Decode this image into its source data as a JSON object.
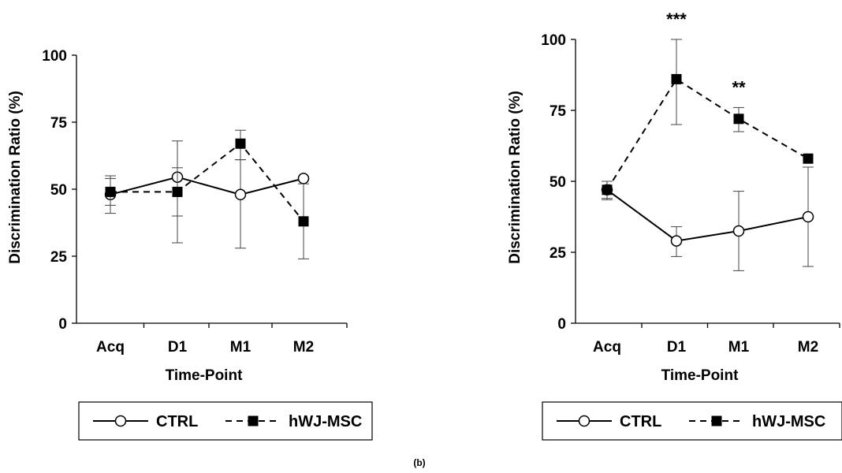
{
  "figure_label": "(b)",
  "chart_data": [
    {
      "type": "line",
      "xlabel": "Time-Point",
      "ylabel": "Discrimination Ratio (%)",
      "categories": [
        "Acq",
        "D1",
        "M1",
        "M2"
      ],
      "ylim": [
        0,
        100
      ],
      "yticks": [
        0,
        25,
        50,
        75,
        100
      ],
      "legend_position": "bottom",
      "series": [
        {
          "name": "CTRL",
          "marker": "open-circle",
          "line": "solid",
          "values": [
            48,
            54.5,
            48,
            54
          ],
          "error": [
            [
              41,
              55
            ],
            [
              40,
              68
            ],
            [
              28,
              61
            ],
            [
              0,
              0
            ]
          ]
        },
        {
          "name": "hWJ-MSC",
          "marker": "filled-square",
          "line": "dashed",
          "values": [
            49,
            49,
            67,
            38
          ],
          "error": [
            [
              44,
              54
            ],
            [
              30,
              58
            ],
            [
              61,
              72
            ],
            [
              24,
              52
            ]
          ]
        }
      ],
      "annotations": []
    },
    {
      "type": "line",
      "xlabel": "Time-Point",
      "ylabel": "Discrimination Ratio (%)",
      "categories": [
        "Acq",
        "D1",
        "M1",
        "M2"
      ],
      "ylim": [
        0,
        100
      ],
      "yticks": [
        0,
        25,
        50,
        75,
        100
      ],
      "legend_position": "bottom",
      "series": [
        {
          "name": "CTRL",
          "marker": "open-circle",
          "line": "solid",
          "values": [
            47,
            29,
            32.5,
            37.5
          ],
          "error": [
            [
              43.5,
              50
            ],
            [
              23.5,
              34
            ],
            [
              18.5,
              46.5
            ],
            [
              20,
              55
            ]
          ]
        },
        {
          "name": "hWJ-MSC",
          "marker": "filled-square",
          "line": "dashed",
          "values": [
            47,
            86,
            72,
            58
          ],
          "error": [
            [
              44,
              50
            ],
            [
              70,
              100
            ],
            [
              67.5,
              76
            ],
            [
              0,
              0
            ]
          ]
        }
      ],
      "annotations": [
        {
          "category": "D1",
          "text": "***"
        },
        {
          "category": "M1",
          "text": "**"
        }
      ]
    }
  ]
}
